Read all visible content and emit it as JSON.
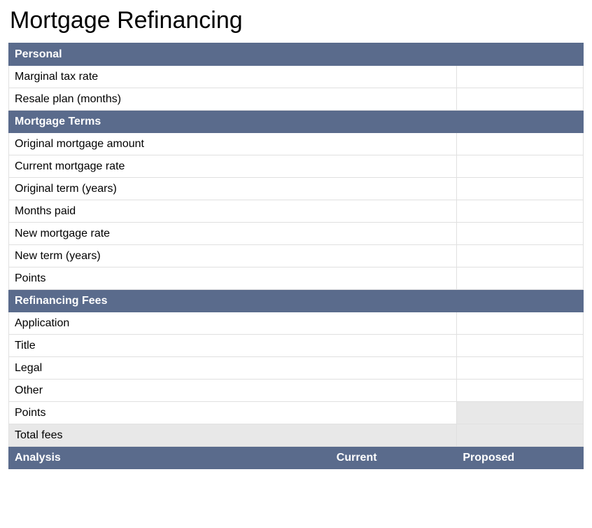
{
  "title": "Mortgage Refinancing",
  "colors": {
    "header_bg": "#5a6b8c",
    "header_text": "#ffffff",
    "border": "#e0e0e0",
    "shaded_bg": "#e8e8e8",
    "text": "#000000",
    "background": "#ffffff"
  },
  "typography": {
    "title_fontsize": 34,
    "body_fontsize": 16,
    "font_family": "Tahoma, Verdana, Arial, sans-serif"
  },
  "layout": {
    "col_widths_pct": [
      56,
      22,
      22
    ]
  },
  "sections": {
    "personal": {
      "header": "Personal",
      "rows": [
        {
          "label": "Marginal tax rate",
          "value": ""
        },
        {
          "label": "Resale plan (months)",
          "value": ""
        }
      ]
    },
    "mortgage_terms": {
      "header": "Mortgage Terms",
      "rows": [
        {
          "label": "Original mortgage amount",
          "value": ""
        },
        {
          "label": "Current mortgage rate",
          "value": ""
        },
        {
          "label": "Original term (years)",
          "value": ""
        },
        {
          "label": "Months paid",
          "value": ""
        },
        {
          "label": "New mortgage rate",
          "value": ""
        },
        {
          "label": "New term (years)",
          "value": ""
        },
        {
          "label": "Points",
          "value": ""
        }
      ]
    },
    "refinancing_fees": {
      "header": "Refinancing Fees",
      "rows": [
        {
          "label": "Application",
          "value": "",
          "shaded": false
        },
        {
          "label": "Title",
          "value": "",
          "shaded": false
        },
        {
          "label": "Legal",
          "value": "",
          "shaded": false
        },
        {
          "label": "Other",
          "value": "",
          "shaded": false
        },
        {
          "label": "Points",
          "value": "",
          "shaded": true
        },
        {
          "label": "Total fees",
          "value": "",
          "total": true
        }
      ]
    },
    "analysis": {
      "header": "Analysis",
      "col_current": "Current",
      "col_proposed": "Proposed"
    }
  }
}
